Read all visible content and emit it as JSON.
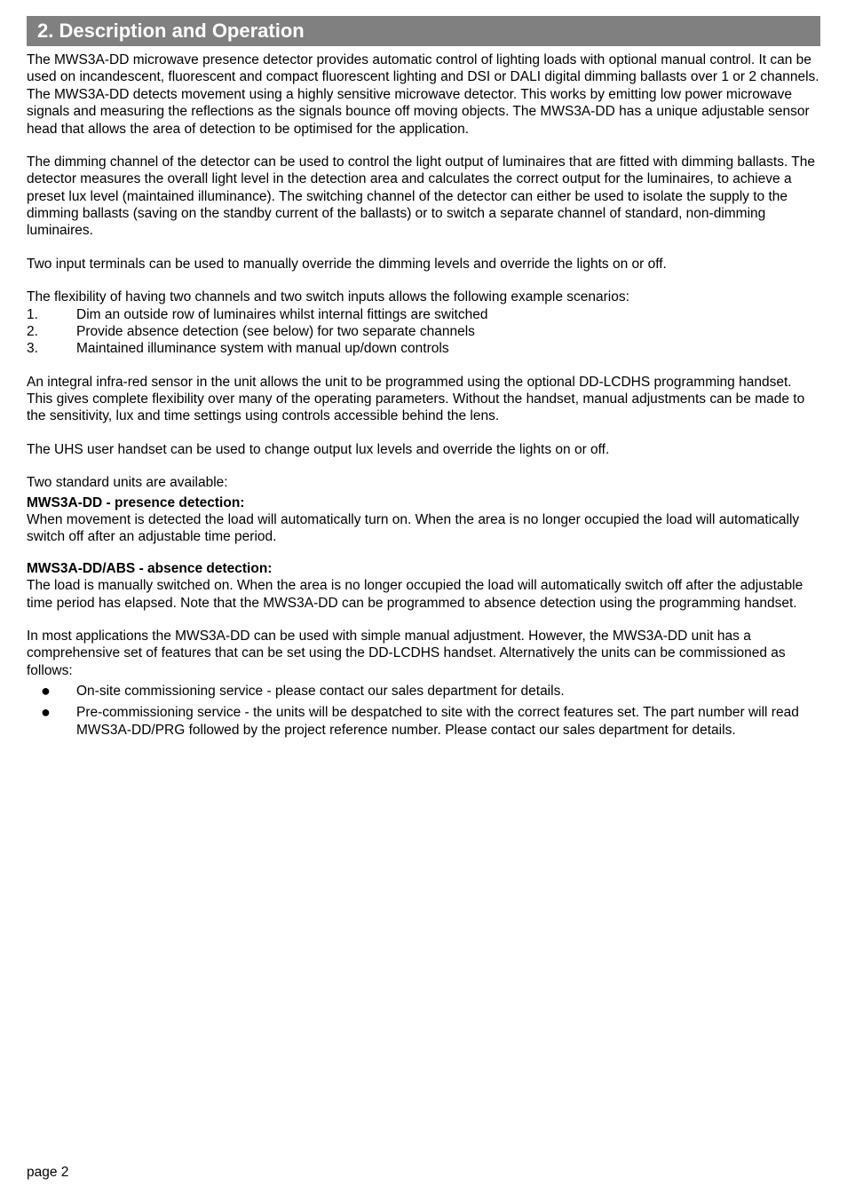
{
  "colors": {
    "header_bg": "#808080",
    "header_text": "#ffffff",
    "body_text": "#000000",
    "page_bg": "#ffffff"
  },
  "typography": {
    "body_fontsize_pt": 12,
    "header_fontsize_pt": 16,
    "font_family": "Arial"
  },
  "header": {
    "title": "2.  Description and Operation"
  },
  "paragraphs": {
    "intro": "The MWS3A-DD microwave presence detector provides automatic control of lighting loads with optional manual control. It can be used on incandescent, fluorescent and compact fluorescent lighting and DSI or DALI digital dimming ballasts over 1 or 2 channels. The MWS3A-DD detects movement using a highly sensitive microwave detector. This works by emitting low power microwave signals and measuring the reflections as the signals bounce off moving objects. The MWS3A-DD has a unique adjustable sensor head that allows the area of detection to be optimised for the application.",
    "dimming": "The dimming channel of the detector can be used to control the light output of luminaires that are fitted with dimming ballasts. The detector measures the overall light level in the detection area and calculates the correct output for the luminaires, to achieve a preset lux level (maintained illuminance). The switching channel of the detector can either be used to isolate the supply to the dimming ballasts (saving on the standby current of the ballasts) or to switch a separate channel of standard, non-dimming luminaires.",
    "two_inputs": "Two input terminals can be used to manually override the dimming levels and override the lights on or off.",
    "flexibility_lead": "The flexibility of having two channels and two  switch inputs allows the following example scenarios:",
    "integral_ir": "An integral infra-red sensor in the unit allows the unit to be programmed using the optional DD-LCDHS programming handset. This gives complete flexibility over many of the operating parameters. Without the handset, manual adjustments can be made to the sensitivity, lux and time settings using controls accessible behind the lens.",
    "uhs": "The UHS user handset can be used to change output lux levels and override the lights on or off.",
    "two_units": "Two standard units are available:",
    "presence_head": "MWS3A-DD - presence detection:",
    "presence_body": "When movement is detected the load will automatically turn on. When the area is no longer occupied the load will automatically switch off after an adjustable time period.",
    "absence_head": "MWS3A-DD/ABS - absence detection:",
    "absence_body": "The load is manually switched on. When the area is no longer occupied the load will automatically switch off after the adjustable time period has elapsed. Note that the MWS3A-DD can be programmed to absence detection using the programming handset.",
    "apps": "In most applications the MWS3A-DD can be used with simple manual adjustment. However, the MWS3A-DD unit has a comprehensive set of features that can be set using the DD-LCDHS handset. Alternatively the units can be commissioned as follows:"
  },
  "num_list": {
    "items": [
      {
        "num": "1.",
        "text": "Dim an outside row of luminaires whilst internal fittings are switched"
      },
      {
        "num": "2.",
        "text": "Provide absence detection (see below) for two separate channels"
      },
      {
        "num": "3.",
        "text": "Maintained illuminance system with manual up/down controls"
      }
    ]
  },
  "bullets": {
    "items": [
      {
        "text": "On-site commissioning service - please contact our sales department for details."
      },
      {
        "text": "Pre-commissioning service - the units will be despatched to site with the correct features set. The part number will read MWS3A-DD/PRG followed by the project reference number. Please contact our sales department for details."
      }
    ]
  },
  "footer": {
    "page": "page 2"
  }
}
